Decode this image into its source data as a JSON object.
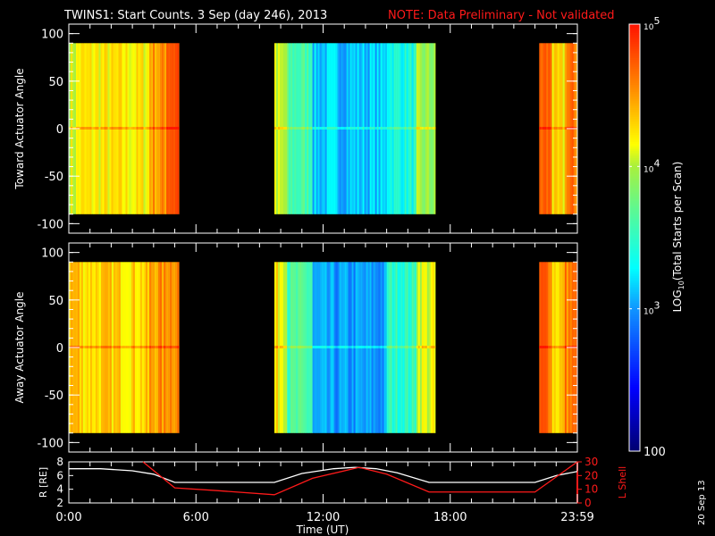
{
  "title": "TWINS1: Start Counts.  3 Sep (day 246), 2013",
  "note": "NOTE: Data Preliminary - Not validated",
  "side_date": "20 Sep 13",
  "colors": {
    "background": "#000000",
    "axes": "#ffffff",
    "note": "#ff1a1a",
    "lshell": "#ff1a1a",
    "radius": "#ffffff"
  },
  "chart_data": [
    {
      "type": "heatmap",
      "name": "toward",
      "ylabel": "Toward Actuator Angle",
      "ylim": [
        -110,
        110
      ],
      "yticks": [
        "100",
        "50",
        "0",
        "-50",
        "-100"
      ],
      "ytick_values": [
        100,
        50,
        0,
        -50,
        -100
      ],
      "data_ylim": [
        -90,
        90
      ],
      "xlim_hours": [
        0,
        24
      ],
      "segments_log10": [
        {
          "hours": [
            0,
            0.4
          ],
          "level": 4.1
        },
        {
          "hours": [
            0.4,
            3.8
          ],
          "level": 4.2
        },
        {
          "hours": [
            3.8,
            4.6
          ],
          "level": 4.5
        },
        {
          "hours": [
            4.6,
            5.2
          ],
          "level": 4.8
        },
        {
          "hours": [
            9.7,
            10.3
          ],
          "level": 4.0
        },
        {
          "hours": [
            10.3,
            11.5
          ],
          "level": 3.6
        },
        {
          "hours": [
            11.5,
            15.0
          ],
          "level": 3.15
        },
        {
          "hours": [
            15.0,
            16.4
          ],
          "level": 3.4
        },
        {
          "hours": [
            16.4,
            17.3
          ],
          "level": 3.9
        },
        {
          "hours": [
            22.2,
            22.8
          ],
          "level": 4.7
        },
        {
          "hours": [
            22.8,
            23.4
          ],
          "level": 4.2
        },
        {
          "hours": [
            23.4,
            24
          ],
          "level": 4.6
        }
      ]
    },
    {
      "type": "heatmap",
      "name": "away",
      "ylabel": "Away Actuator Angle",
      "ylim": [
        -110,
        110
      ],
      "yticks": [
        "100",
        "50",
        "0",
        "-50",
        "-100"
      ],
      "ytick_values": [
        100,
        50,
        0,
        -50,
        -100
      ],
      "data_ylim": [
        -90,
        90
      ],
      "xlim_hours": [
        0,
        24
      ],
      "segments_log10": [
        {
          "hours": [
            0,
            0.5
          ],
          "level": 4.4
        },
        {
          "hours": [
            0.5,
            3.8
          ],
          "level": 4.3
        },
        {
          "hours": [
            3.8,
            4.6
          ],
          "level": 4.5
        },
        {
          "hours": [
            4.6,
            5.2
          ],
          "level": 4.6
        },
        {
          "hours": [
            9.7,
            10.3
          ],
          "level": 4.2
        },
        {
          "hours": [
            10.3,
            11.5
          ],
          "level": 3.6
        },
        {
          "hours": [
            11.5,
            15.0
          ],
          "level": 3.0
        },
        {
          "hours": [
            15.0,
            16.4
          ],
          "level": 3.5
        },
        {
          "hours": [
            16.4,
            17.3
          ],
          "level": 4.1
        },
        {
          "hours": [
            22.2,
            22.8
          ],
          "level": 4.7
        },
        {
          "hours": [
            22.8,
            23.4
          ],
          "level": 4.3
        },
        {
          "hours": [
            23.4,
            24
          ],
          "level": 4.6
        }
      ]
    },
    {
      "type": "line",
      "name": "orbit",
      "xlabel": "Time (UT)",
      "xticks": [
        "0:00",
        "6:00",
        "12:00",
        "18:00",
        "23:59"
      ],
      "xtick_hours": [
        0,
        6,
        12,
        18,
        24
      ],
      "ylabel_left": "R [RE]",
      "ylim_left": [
        2,
        8
      ],
      "yticks_left": [
        "8",
        "6",
        "4",
        "2"
      ],
      "ylabel_right": "L Shell",
      "ylim_right": [
        0,
        30
      ],
      "yticks_right": [
        "30",
        "20",
        "10",
        "0"
      ],
      "series": [
        {
          "name": "R",
          "x": [
            0,
            1.5,
            3,
            4,
            5,
            9.7,
            11,
            12.5,
            13.5,
            14.5,
            15.5,
            17,
            22,
            23,
            24
          ],
          "y": [
            7.0,
            7.0,
            6.7,
            6.2,
            5.0,
            5.0,
            6.3,
            7.0,
            7.2,
            7.0,
            6.4,
            5.0,
            5.0,
            6.0,
            6.6
          ]
        },
        {
          "name": "L Shell",
          "x": [
            3.5,
            5.0,
            7.0,
            9.7,
            11.5,
            13.7,
            15.0,
            17.0,
            22.0,
            24.0
          ],
          "y": [
            30,
            11,
            9,
            6,
            18,
            26,
            21,
            8,
            8,
            30
          ]
        }
      ]
    },
    {
      "type": "colorbar",
      "label": "LOG10(Total Starts per Scan)",
      "label_main": "LOG",
      "label_sub": "10",
      "label_rest": "(Total Starts per Scan)",
      "range_log10": [
        2,
        5
      ],
      "ticks": [
        {
          "base": "10",
          "exp": "5",
          "value": 5
        },
        {
          "base": "10",
          "exp": "4",
          "value": 4
        },
        {
          "base": "10",
          "exp": "3",
          "value": 3
        }
      ],
      "bottom_label": "100"
    }
  ]
}
